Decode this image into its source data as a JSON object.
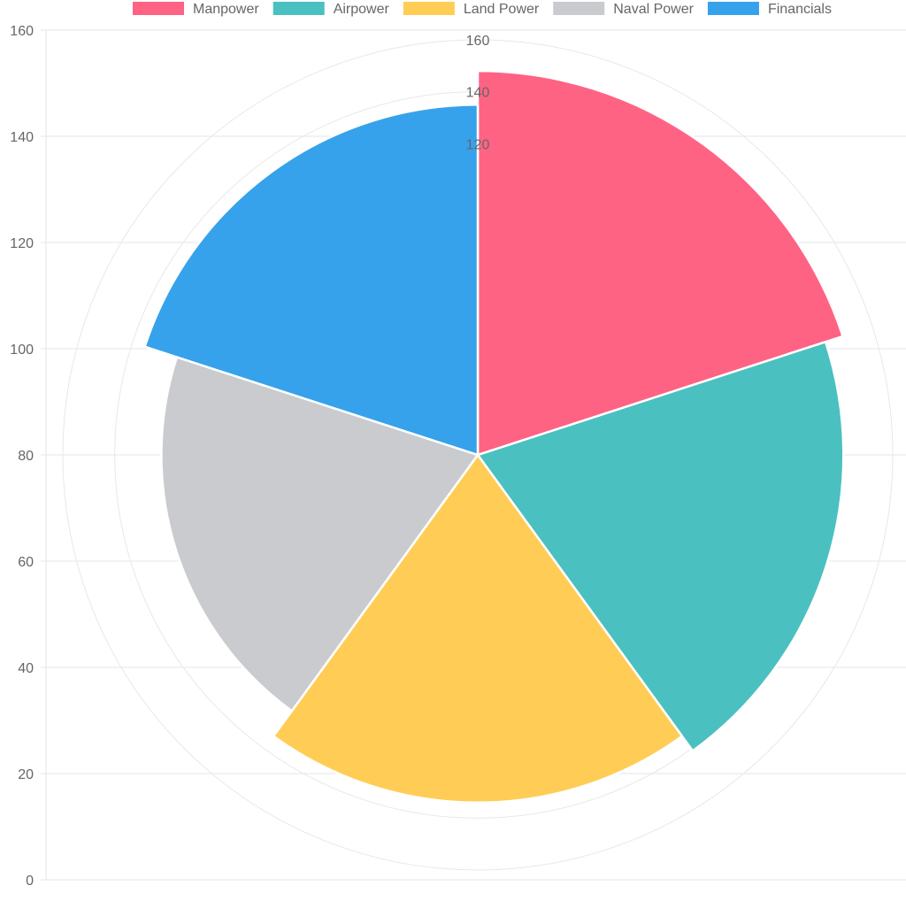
{
  "chart_data": {
    "type": "polarArea",
    "title": "",
    "categories": [
      "Manpower",
      "Airpower",
      "Land Power",
      "Naval Power",
      "Financials"
    ],
    "values": [
      148,
      141,
      134,
      122,
      135
    ],
    "colors": [
      "#ff6384",
      "#4bc0c0",
      "#ffcd56",
      "#c9cbcf",
      "#36a2eb"
    ],
    "legend": {
      "position": "top",
      "items": [
        {
          "label": "Manpower",
          "color": "#ff6384"
        },
        {
          "label": "Airpower",
          "color": "#4bc0c0"
        },
        {
          "label": "Land Power",
          "color": "#ffcd56"
        },
        {
          "label": "Naval Power",
          "color": "#c9cbcf"
        },
        {
          "label": "Financials",
          "color": "#36a2eb"
        }
      ]
    },
    "y_axis": {
      "ylim": [
        0,
        160
      ],
      "ticks": [
        "0",
        "20",
        "40",
        "60",
        "80",
        "100",
        "120",
        "140",
        "160"
      ],
      "grid": true
    },
    "r_axis": {
      "rlim": [
        0,
        160
      ],
      "rings": [
        20,
        40,
        60,
        80,
        100,
        120,
        140,
        160
      ],
      "visible_tick_labels": [
        "120",
        "140",
        "160"
      ],
      "grid": true
    }
  }
}
